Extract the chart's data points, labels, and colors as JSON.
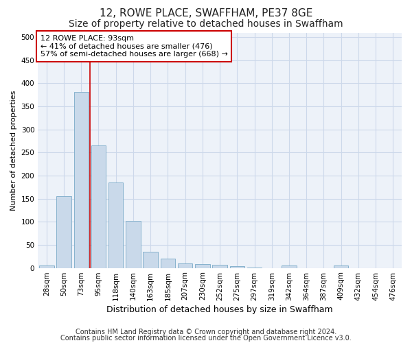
{
  "title": "12, ROWE PLACE, SWAFFHAM, PE37 8GE",
  "subtitle": "Size of property relative to detached houses in Swaffham",
  "xlabel": "Distribution of detached houses by size in Swaffham",
  "ylabel": "Number of detached properties",
  "categories": [
    "28sqm",
    "50sqm",
    "73sqm",
    "95sqm",
    "118sqm",
    "140sqm",
    "163sqm",
    "185sqm",
    "207sqm",
    "230sqm",
    "252sqm",
    "275sqm",
    "297sqm",
    "319sqm",
    "342sqm",
    "364sqm",
    "387sqm",
    "409sqm",
    "432sqm",
    "454sqm",
    "476sqm"
  ],
  "values": [
    5,
    155,
    382,
    265,
    185,
    102,
    35,
    20,
    10,
    8,
    7,
    4,
    1,
    0,
    5,
    0,
    0,
    5,
    0,
    0,
    0
  ],
  "bar_color": "#c9d9ea",
  "bar_edgecolor": "#7aaac8",
  "vline_x": 2.5,
  "vline_color": "#cc0000",
  "ylim": [
    0,
    510
  ],
  "yticks": [
    0,
    50,
    100,
    150,
    200,
    250,
    300,
    350,
    400,
    450,
    500
  ],
  "annotation_line1": "12 ROWE PLACE: 93sqm",
  "annotation_line2": "← 41% of detached houses are smaller (476)",
  "annotation_line3": "57% of semi-detached houses are larger (668) →",
  "annotation_box_color": "#ffffff",
  "annotation_box_edgecolor": "#cc0000",
  "footer_line1": "Contains HM Land Registry data © Crown copyright and database right 2024.",
  "footer_line2": "Contains public sector information licensed under the Open Government Licence v3.0.",
  "title_fontsize": 11,
  "subtitle_fontsize": 10,
  "xlabel_fontsize": 9,
  "ylabel_fontsize": 8,
  "tick_fontsize": 7.5,
  "annotation_fontsize": 8,
  "footer_fontsize": 7,
  "grid_color": "#ccd8ea",
  "background_color": "#edf2f9"
}
